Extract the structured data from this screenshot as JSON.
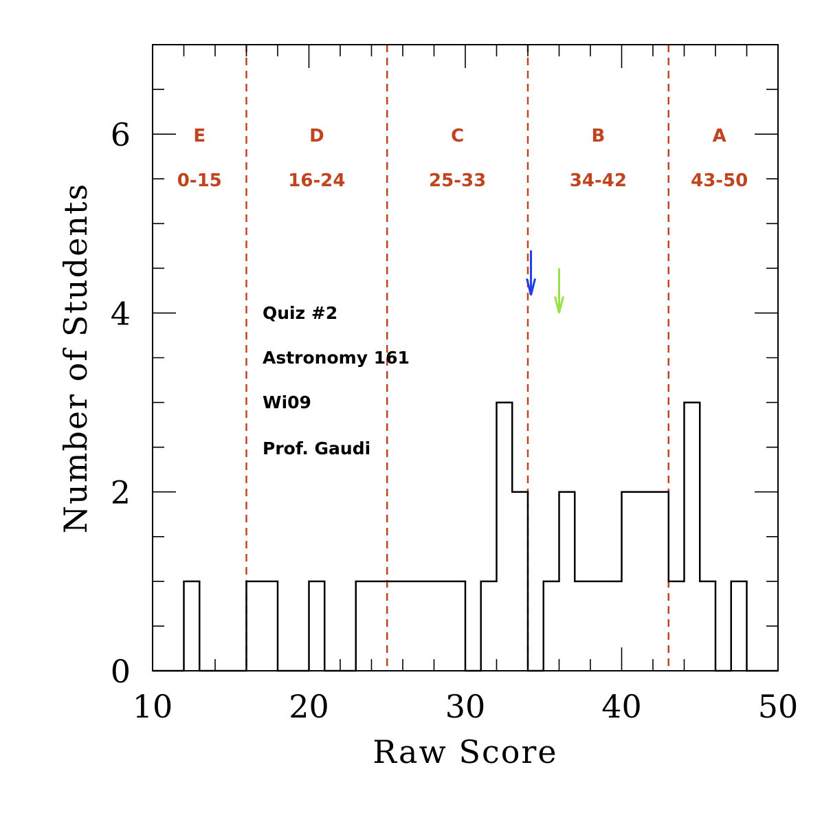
{
  "chart_data": {
    "type": "histogram",
    "xlabel": "Raw Score",
    "ylabel": "Number of Students",
    "xlim": [
      10,
      50
    ],
    "ylim": [
      0,
      7
    ],
    "x_ticks": [
      10,
      20,
      30,
      40,
      50
    ],
    "y_ticks": [
      0,
      2,
      4,
      6
    ],
    "bins": [
      {
        "x0": 10,
        "x1": 12,
        "count": 0
      },
      {
        "x0": 12,
        "x1": 13,
        "count": 1
      },
      {
        "x0": 13,
        "x1": 16,
        "count": 0
      },
      {
        "x0": 16,
        "x1": 18,
        "count": 1
      },
      {
        "x0": 18,
        "x1": 20,
        "count": 0
      },
      {
        "x0": 20,
        "x1": 21,
        "count": 1
      },
      {
        "x0": 21,
        "x1": 23,
        "count": 0
      },
      {
        "x0": 23,
        "x1": 30,
        "count": 1
      },
      {
        "x0": 30,
        "x1": 31,
        "count": 0
      },
      {
        "x0": 31,
        "x1": 32,
        "count": 1
      },
      {
        "x0": 32,
        "x1": 33,
        "count": 3
      },
      {
        "x0": 33,
        "x1": 34,
        "count": 2
      },
      {
        "x0": 34,
        "x1": 35,
        "count": 0
      },
      {
        "x0": 35,
        "x1": 36,
        "count": 1
      },
      {
        "x0": 36,
        "x1": 37,
        "count": 2
      },
      {
        "x0": 37,
        "x1": 40,
        "count": 1
      },
      {
        "x0": 40,
        "x1": 43,
        "count": 2
      },
      {
        "x0": 43,
        "x1": 44,
        "count": 1
      },
      {
        "x0": 44,
        "x1": 45,
        "count": 3
      },
      {
        "x0": 45,
        "x1": 46,
        "count": 1
      },
      {
        "x0": 46,
        "x1": 47,
        "count": 0
      },
      {
        "x0": 47,
        "x1": 48,
        "count": 1
      },
      {
        "x0": 48,
        "x1": 50,
        "count": 0
      }
    ],
    "grade_boundaries": [
      16,
      25,
      34,
      43
    ],
    "grades": [
      {
        "letter": "E",
        "range": "0-15",
        "center": 13
      },
      {
        "letter": "D",
        "range": "16-24",
        "center": 20.5
      },
      {
        "letter": "C",
        "range": "25-33",
        "center": 29.5
      },
      {
        "letter": "B",
        "range": "34-42",
        "center": 38.5
      },
      {
        "letter": "A",
        "range": "43-50",
        "center": 46.25
      }
    ],
    "markers": [
      {
        "x": 34.2,
        "y_top": 4.7,
        "y_tip": 4.2,
        "color": "#1f3fe0"
      },
      {
        "x": 36.0,
        "y_top": 4.5,
        "y_tip": 4.0,
        "color": "#9be04a"
      }
    ],
    "info_lines": [
      "Quiz #2",
      "Astronomy 161",
      "Wi09",
      "Prof. Gaudi"
    ],
    "colors": {
      "histogram": "#000000",
      "boundary": "#c0441f"
    }
  }
}
